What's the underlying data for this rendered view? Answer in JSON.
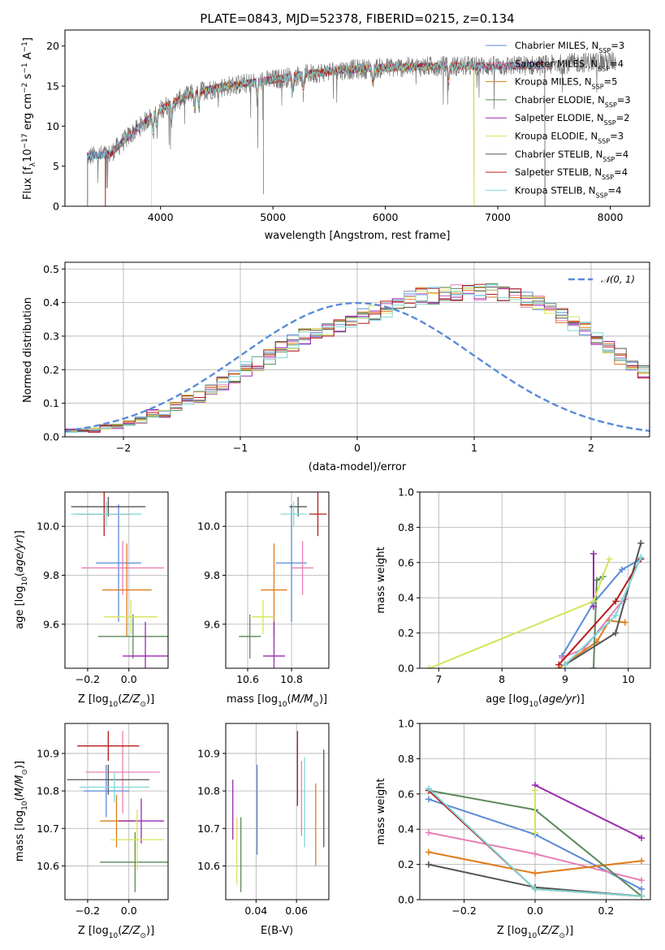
{
  "colors": {
    "chabrier_miles": "#5B8BD8",
    "salpeter_miles": "#E87FB5",
    "kroupa_miles": "#E07B1A",
    "chabrier_elodie": "#5A8A5A",
    "salpeter_elodie": "#9B27B0",
    "kroupa_elodie": "#D4E45A",
    "chabrier_stelib": "#555555",
    "salpeter_stelib": "#B71C1C",
    "kroupa_stelib": "#7FD8D8",
    "normal_fit": "#5B8BD8"
  },
  "chart_data": [
    {
      "id": "spectrum",
      "type": "line",
      "title": "PLATE=0843, MJD=52378, FIBERID=0215, z=0.134",
      "xlabel": "wavelength [Angstrom, rest frame]",
      "ylabel": "Flux [f_λ 10^-17 erg cm^-2 s^-1 A^-1]",
      "xlim": [
        3150,
        8350
      ],
      "ylim": [
        0,
        22
      ],
      "xticks": [
        4000,
        5000,
        6000,
        7000,
        8000
      ],
      "yticks": [
        0,
        5,
        10,
        15,
        20
      ],
      "grid": false,
      "legend_position": "top-right",
      "legend": [
        {
          "label": "Chabrier MILES, N",
          "sub": "SSP",
          "tail": "=3",
          "color_key": "chabrier_miles"
        },
        {
          "label": "Salpeter MILES, N",
          "sub": "SSP",
          "tail": "=4",
          "color_key": "salpeter_miles"
        },
        {
          "label": "Kroupa MILES, N",
          "sub": "SSP",
          "tail": "=5",
          "color_key": "kroupa_miles"
        },
        {
          "label": "Chabrier ELODIE, N",
          "sub": "SSP",
          "tail": "=3",
          "color_key": "chabrier_elodie"
        },
        {
          "label": "Salpeter ELODIE, N",
          "sub": "SSP",
          "tail": "=2",
          "color_key": "salpeter_elodie"
        },
        {
          "label": "Kroupa ELODIE, N",
          "sub": "SSP",
          "tail": "=3",
          "color_key": "kroupa_elodie"
        },
        {
          "label": "Chabrier STELIB, N",
          "sub": "SSP",
          "tail": "=4",
          "color_key": "chabrier_stelib"
        },
        {
          "label": "Salpeter STELIB, N",
          "sub": "SSP",
          "tail": "=4",
          "color_key": "salpeter_stelib"
        },
        {
          "label": "Kroupa STELIB, N",
          "sub": "SSP",
          "tail": "=4",
          "color_key": "kroupa_stelib"
        }
      ],
      "continuum": [
        [
          3350,
          6.2
        ],
        [
          3550,
          6.5
        ],
        [
          3700,
          8.5
        ],
        [
          3900,
          11.0
        ],
        [
          4050,
          12.5
        ],
        [
          4300,
          14.2
        ],
        [
          4600,
          15.0
        ],
        [
          5000,
          15.8
        ],
        [
          5300,
          16.5
        ],
        [
          5600,
          17.0
        ],
        [
          6000,
          17.3
        ],
        [
          6500,
          17.5
        ],
        [
          7000,
          17.5
        ],
        [
          7400,
          17.6
        ],
        [
          7800,
          18.0
        ],
        [
          8000,
          18.1
        ]
      ],
      "model_start": 3350,
      "model_end": 7420,
      "data_start": 3350,
      "data_end": 8050,
      "absorption_lines": [
        3934,
        3969,
        4102,
        4305,
        4340,
        4861,
        5175,
        5270,
        5890,
        6563
      ]
    },
    {
      "id": "residual_hist",
      "type": "bar",
      "xlabel": "(data-model)/error",
      "ylabel": "Normed distribution",
      "xlim": [
        -2.5,
        2.5
      ],
      "ylim": [
        0,
        0.52
      ],
      "xticks": [
        -2,
        -1,
        0,
        1,
        2
      ],
      "yticks": [
        0.0,
        0.1,
        0.2,
        0.3,
        0.4,
        0.5
      ],
      "grid": true,
      "legend_position": "top-right",
      "normal_label": "𝒩(0, 1)",
      "bin_width": 0.1,
      "bin_start": -2.5,
      "envelope": [
        0.02,
        0.02,
        0.02,
        0.03,
        0.03,
        0.04,
        0.05,
        0.07,
        0.07,
        0.09,
        0.11,
        0.12,
        0.14,
        0.16,
        0.18,
        0.2,
        0.22,
        0.24,
        0.26,
        0.28,
        0.3,
        0.31,
        0.32,
        0.33,
        0.34,
        0.36,
        0.37,
        0.38,
        0.4,
        0.41,
        0.42,
        0.42,
        0.43,
        0.43,
        0.43,
        0.43,
        0.44,
        0.43,
        0.42,
        0.41,
        0.4,
        0.38,
        0.36,
        0.34,
        0.32,
        0.29,
        0.26,
        0.24,
        0.22,
        0.2,
        0.18,
        0.16,
        0.14,
        0.12,
        0.1,
        0.09,
        0.08,
        0.07,
        0.06,
        0.05,
        0.04,
        0.04,
        0.03,
        0.03,
        0.02,
        0.02,
        0.02,
        0.02,
        0.01,
        0.01
      ]
    },
    {
      "id": "age_vs_Z",
      "type": "scatter",
      "xlabel": "Z [log10(Z/Z⊙)]",
      "ylabel": "age  [log10(age/yr)]",
      "xlim": [
        -0.31,
        0.19
      ],
      "ylim": [
        9.42,
        10.14
      ],
      "xticks": [
        -0.2,
        0.0
      ],
      "yticks": [
        9.6,
        9.8,
        10.0
      ],
      "grid": true,
      "points": [
        {
          "color_key": "chabrier_miles",
          "x": -0.05,
          "y": 9.85,
          "xerr": 0.11,
          "yerr": 0.24
        },
        {
          "color_key": "salpeter_miles",
          "x": -0.03,
          "y": 9.83,
          "xerr": 0.2,
          "yerr": 0.11
        },
        {
          "color_key": "kroupa_miles",
          "x": -0.01,
          "y": 9.74,
          "xerr": 0.12,
          "yerr": 0.19
        },
        {
          "color_key": "chabrier_elodie",
          "x": 0.02,
          "y": 9.55,
          "xerr": 0.17,
          "yerr": 0.09
        },
        {
          "color_key": "salpeter_elodie",
          "x": 0.08,
          "y": 9.47,
          "xerr": 0.11,
          "yerr": 0.14
        },
        {
          "color_key": "kroupa_elodie",
          "x": 0.01,
          "y": 9.63,
          "xerr": 0.13,
          "yerr": 0.07
        },
        {
          "color_key": "chabrier_stelib",
          "x": -0.1,
          "y": 10.08,
          "xerr": 0.18,
          "yerr": 0.04
        },
        {
          "color_key": "salpeter_stelib",
          "x": -0.12,
          "y": 10.05,
          "xerr": 0.13,
          "yerr": 0.09
        },
        {
          "color_key": "kroupa_stelib",
          "x": -0.11,
          "y": 10.05,
          "xerr": 0.17,
          "yerr": 0.05
        }
      ]
    },
    {
      "id": "age_vs_mass",
      "type": "scatter",
      "xlabel": "mass [log10(M/M⊙)]",
      "ylabel": "",
      "xlim": [
        10.5,
        10.97
      ],
      "ylim": [
        9.42,
        10.14
      ],
      "xticks": [
        10.6,
        10.8
      ],
      "yticks": [
        9.6,
        9.8,
        10.0
      ],
      "grid": true,
      "points": [
        {
          "color_key": "chabrier_miles",
          "x": 10.8,
          "y": 9.85,
          "xerr": 0.07,
          "yerr": 0.24
        },
        {
          "color_key": "salpeter_miles",
          "x": 10.85,
          "y": 9.83,
          "xerr": 0.05,
          "yerr": 0.11
        },
        {
          "color_key": "kroupa_miles",
          "x": 10.72,
          "y": 9.74,
          "xerr": 0.06,
          "yerr": 0.19
        },
        {
          "color_key": "chabrier_elodie",
          "x": 10.61,
          "y": 9.55,
          "xerr": 0.05,
          "yerr": 0.09
        },
        {
          "color_key": "salpeter_elodie",
          "x": 10.72,
          "y": 9.47,
          "xerr": 0.05,
          "yerr": 0.14
        },
        {
          "color_key": "kroupa_elodie",
          "x": 10.67,
          "y": 9.63,
          "xerr": 0.05,
          "yerr": 0.07
        },
        {
          "color_key": "chabrier_stelib",
          "x": 10.83,
          "y": 10.08,
          "xerr": 0.04,
          "yerr": 0.04
        },
        {
          "color_key": "salpeter_stelib",
          "x": 10.92,
          "y": 10.05,
          "xerr": 0.04,
          "yerr": 0.09
        },
        {
          "color_key": "kroupa_stelib",
          "x": 10.81,
          "y": 10.05,
          "xerr": 0.06,
          "yerr": 0.05
        }
      ]
    },
    {
      "id": "weight_vs_age",
      "type": "line",
      "xlabel": "age  [log10(age/yr)]",
      "ylabel": "mass weight",
      "xlim": [
        6.7,
        10.35
      ],
      "ylim": [
        0,
        1.0
      ],
      "xticks": [
        7,
        8,
        9,
        10
      ],
      "yticks": [
        0.0,
        0.2,
        0.4,
        0.6,
        0.8,
        1.0
      ],
      "grid": true,
      "series": [
        {
          "color_key": "chabrier_miles",
          "x": [
            8.95,
            9.45,
            9.9,
            10.2
          ],
          "y": [
            0.07,
            0.37,
            0.56,
            0.62
          ]
        },
        {
          "color_key": "salpeter_miles",
          "x": [
            8.95,
            9.3,
            9.9,
            9.95
          ],
          "y": [
            0.06,
            0.11,
            0.38,
            0.39
          ]
        },
        {
          "color_key": "kroupa_miles",
          "x": [
            8.9,
            9.5,
            9.7,
            9.95
          ],
          "y": [
            0.0,
            0.15,
            0.27,
            0.26
          ]
        },
        {
          "color_key": "chabrier_elodie",
          "x": [
            9.45,
            9.5,
            9.6
          ],
          "y": [
            0.0,
            0.5,
            0.52
          ]
        },
        {
          "color_key": "salpeter_elodie",
          "x": [
            9.45,
            9.45
          ],
          "y": [
            0.35,
            0.65
          ]
        },
        {
          "color_key": "kroupa_elodie",
          "x": [
            6.85,
            9.45,
            9.7
          ],
          "y": [
            0.0,
            0.38,
            0.62
          ]
        },
        {
          "color_key": "chabrier_stelib",
          "x": [
            9.0,
            9.8,
            10.2
          ],
          "y": [
            0.02,
            0.2,
            0.71
          ]
        },
        {
          "color_key": "salpeter_stelib",
          "x": [
            8.9,
            9.8,
            10.2
          ],
          "y": [
            0.02,
            0.38,
            0.62
          ]
        },
        {
          "color_key": "kroupa_stelib",
          "x": [
            9.0,
            9.8,
            10.2
          ],
          "y": [
            0.02,
            0.3,
            0.63
          ]
        }
      ]
    },
    {
      "id": "mass_vs_Z",
      "type": "scatter",
      "xlabel": "Z [log10(Z/Z⊙)]",
      "ylabel": "mass [log10(M/M⊙)]",
      "xlim": [
        -0.31,
        0.19
      ],
      "ylim": [
        10.51,
        10.98
      ],
      "xticks": [
        -0.2,
        0.0
      ],
      "yticks": [
        10.6,
        10.7,
        10.8,
        10.9
      ],
      "grid": true,
      "points": [
        {
          "color_key": "chabrier_miles",
          "x": -0.11,
          "y": 10.8,
          "xerr": 0.11,
          "yerr": 0.07
        },
        {
          "color_key": "salpeter_miles",
          "x": -0.03,
          "y": 10.85,
          "xerr": 0.18,
          "yerr": 0.11
        },
        {
          "color_key": "kroupa_miles",
          "x": -0.06,
          "y": 10.72,
          "xerr": 0.08,
          "yerr": 0.07
        },
        {
          "color_key": "chabrier_elodie",
          "x": 0.03,
          "y": 10.61,
          "xerr": 0.17,
          "yerr": 0.08
        },
        {
          "color_key": "salpeter_elodie",
          "x": 0.06,
          "y": 10.72,
          "xerr": 0.11,
          "yerr": 0.06
        },
        {
          "color_key": "kroupa_elodie",
          "x": 0.04,
          "y": 10.67,
          "xerr": 0.13,
          "yerr": 0.08
        },
        {
          "color_key": "chabrier_stelib",
          "x": -0.1,
          "y": 10.83,
          "xerr": 0.2,
          "yerr": 0.04
        },
        {
          "color_key": "salpeter_stelib",
          "x": -0.1,
          "y": 10.92,
          "xerr": 0.15,
          "yerr": 0.04
        },
        {
          "color_key": "kroupa_stelib",
          "x": -0.07,
          "y": 10.81,
          "xerr": 0.17,
          "yerr": 0.04
        }
      ]
    },
    {
      "id": "mass_vs_ebv",
      "type": "scatter",
      "xlabel": "E(B-V)",
      "ylabel": "",
      "xlim": [
        0.025,
        0.076
      ],
      "ylim": [
        10.51,
        10.98
      ],
      "xticks": [
        0.04,
        0.06
      ],
      "yticks": [
        10.6,
        10.7,
        10.8,
        10.9
      ],
      "grid": true,
      "points": [
        {
          "color_key": "chabrier_miles",
          "x": 0.0405,
          "y": 10.75,
          "yerr": 0.12
        },
        {
          "color_key": "salpeter_miles",
          "x": 0.0625,
          "y": 10.78,
          "yerr": 0.1
        },
        {
          "color_key": "kroupa_miles",
          "x": 0.0695,
          "y": 10.71,
          "yerr": 0.11
        },
        {
          "color_key": "chabrier_elodie",
          "x": 0.0325,
          "y": 10.63,
          "yerr": 0.1
        },
        {
          "color_key": "salpeter_elodie",
          "x": 0.0285,
          "y": 10.75,
          "yerr": 0.08
        },
        {
          "color_key": "kroupa_elodie",
          "x": 0.0305,
          "y": 10.64,
          "yerr": 0.09
        },
        {
          "color_key": "chabrier_stelib",
          "x": 0.0735,
          "y": 10.78,
          "yerr": 0.13
        },
        {
          "color_key": "salpeter_stelib",
          "x": 0.0605,
          "y": 10.86,
          "yerr": 0.1
        },
        {
          "color_key": "kroupa_stelib",
          "x": 0.064,
          "y": 10.77,
          "yerr": 0.12
        }
      ]
    },
    {
      "id": "weight_vs_Z",
      "type": "line",
      "xlabel": "Z [log10(Z/Z⊙)]",
      "ylabel": "mass weight",
      "xlim": [
        -0.325,
        0.325
      ],
      "ylim": [
        0,
        1.0
      ],
      "xticks": [
        -0.2,
        0.0,
        0.2
      ],
      "yticks": [
        0.0,
        0.2,
        0.4,
        0.6,
        0.8,
        1.0
      ],
      "grid": true,
      "series": [
        {
          "color_key": "chabrier_miles",
          "x": [
            -0.3,
            0.0,
            0.3
          ],
          "y": [
            0.57,
            0.37,
            0.06
          ]
        },
        {
          "color_key": "salpeter_miles",
          "x": [
            -0.3,
            0.0,
            0.3
          ],
          "y": [
            0.38,
            0.26,
            0.11
          ]
        },
        {
          "color_key": "kroupa_miles",
          "x": [
            -0.3,
            0.0,
            0.3
          ],
          "y": [
            0.27,
            0.15,
            0.22
          ]
        },
        {
          "color_key": "chabrier_elodie",
          "x": [
            -0.3,
            0.0,
            0.3
          ],
          "y": [
            0.62,
            0.51,
            0.02
          ]
        },
        {
          "color_key": "salpeter_elodie",
          "x": [
            0.0,
            0.3
          ],
          "y": [
            0.65,
            0.35
          ]
        },
        {
          "color_key": "kroupa_elodie",
          "x": [
            0.0,
            0.0
          ],
          "y": [
            0.38,
            0.62
          ]
        },
        {
          "color_key": "chabrier_stelib",
          "x": [
            -0.3,
            0.0,
            0.3
          ],
          "y": [
            0.2,
            0.07,
            0.02
          ]
        },
        {
          "color_key": "salpeter_stelib",
          "x": [
            -0.3,
            0.0,
            0.3
          ],
          "y": [
            0.62,
            0.06,
            0.02
          ]
        },
        {
          "color_key": "kroupa_stelib",
          "x": [
            -0.3,
            0.0,
            0.3
          ],
          "y": [
            0.63,
            0.06,
            0.02
          ]
        }
      ]
    }
  ]
}
